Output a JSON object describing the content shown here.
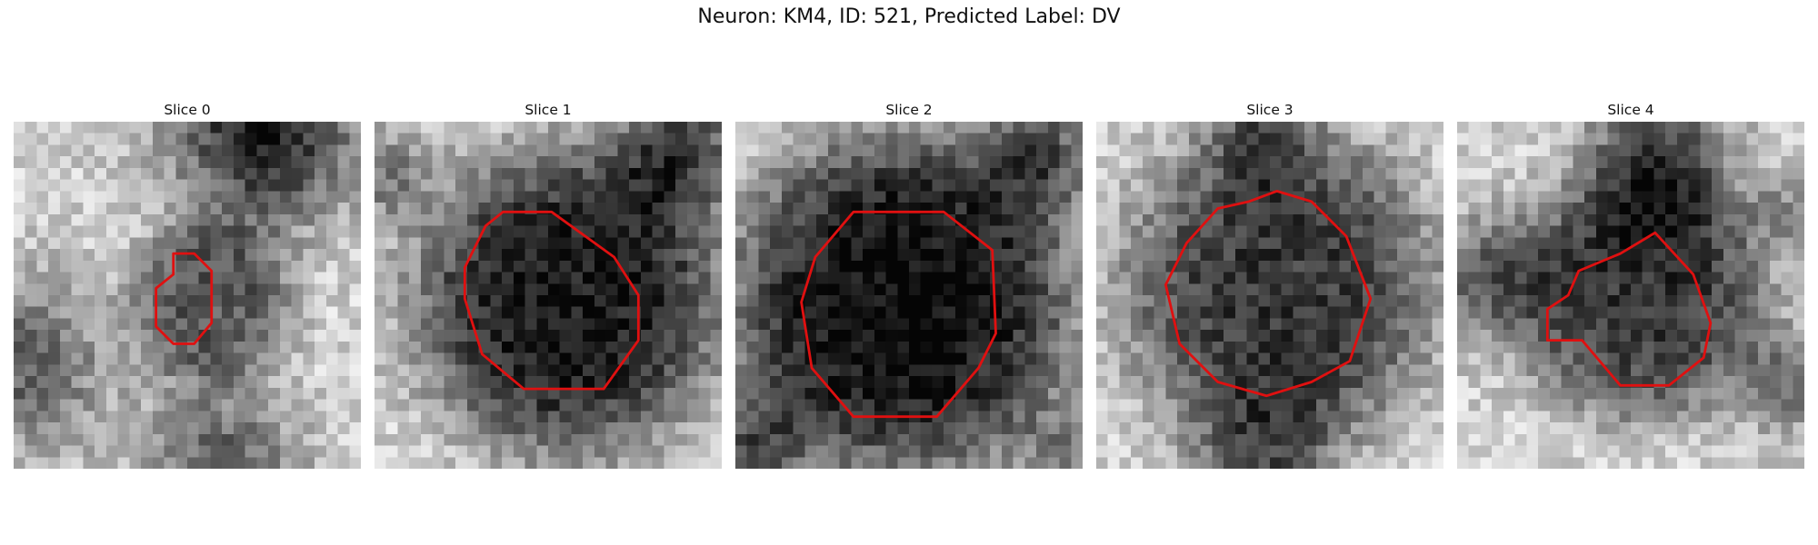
{
  "figure": {
    "suptitle": "Neuron: KM4, ID: 521, Predicted Label: DV"
  },
  "colors": {
    "background": "#ffffff",
    "contour": "#e01010",
    "image_colormap": "grayscale"
  },
  "slices": [
    {
      "title": "Slice 0"
    },
    {
      "title": "Slice 1"
    },
    {
      "title": "Slice 2"
    },
    {
      "title": "Slice 3"
    },
    {
      "title": "Slice 4"
    }
  ]
}
